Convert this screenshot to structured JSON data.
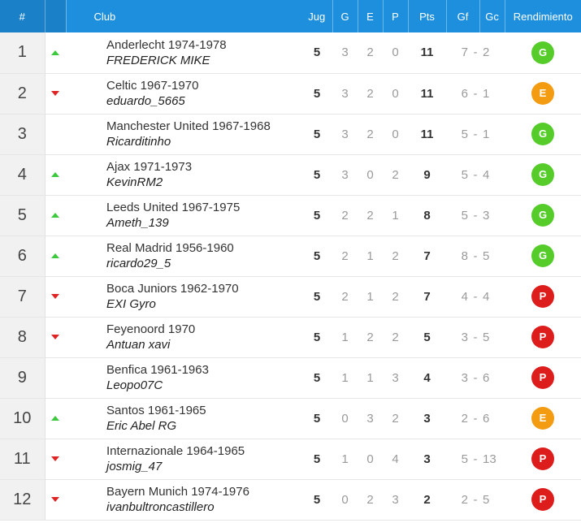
{
  "header": {
    "rank": "#",
    "club": "Club",
    "jug": "Jug",
    "g": "G",
    "e": "E",
    "p": "P",
    "pts": "Pts",
    "gf": "Gf",
    "gc": "Gc",
    "rendimiento": "Rendimiento"
  },
  "colors": {
    "header_bg": "#1e8fdc",
    "trend_up": "#3dc93d",
    "trend_down": "#e02424",
    "badge_G": "#55cc2a",
    "badge_E": "#f39c12",
    "badge_P": "#dd1c1c"
  },
  "rows": [
    {
      "rank": "1",
      "trend": "up",
      "club": "Anderlecht 1974-1978",
      "user": "FREDERICK MIKE",
      "jug": "5",
      "g": "3",
      "e": "2",
      "p": "0",
      "pts": "11",
      "gf": "7",
      "gc": "2",
      "rend": "G"
    },
    {
      "rank": "2",
      "trend": "down",
      "club": "Celtic 1967-1970",
      "user": "eduardo_5665",
      "jug": "5",
      "g": "3",
      "e": "2",
      "p": "0",
      "pts": "11",
      "gf": "6",
      "gc": "1",
      "rend": "E"
    },
    {
      "rank": "3",
      "trend": "none",
      "club": "Manchester United 1967-1968",
      "user": "Ricarditinho",
      "jug": "5",
      "g": "3",
      "e": "2",
      "p": "0",
      "pts": "11",
      "gf": "5",
      "gc": "1",
      "rend": "G"
    },
    {
      "rank": "4",
      "trend": "up",
      "club": "Ajax 1971-1973",
      "user": "KevinRM2",
      "jug": "5",
      "g": "3",
      "e": "0",
      "p": "2",
      "pts": "9",
      "gf": "5",
      "gc": "4",
      "rend": "G"
    },
    {
      "rank": "5",
      "trend": "up",
      "club": "Leeds United 1967-1975",
      "user": "Ameth_139",
      "jug": "5",
      "g": "2",
      "e": "2",
      "p": "1",
      "pts": "8",
      "gf": "5",
      "gc": "3",
      "rend": "G"
    },
    {
      "rank": "6",
      "trend": "up",
      "club": "Real Madrid 1956-1960",
      "user": "ricardo29_5",
      "jug": "5",
      "g": "2",
      "e": "1",
      "p": "2",
      "pts": "7",
      "gf": "8",
      "gc": "5",
      "rend": "G"
    },
    {
      "rank": "7",
      "trend": "down",
      "club": "Boca Juniors 1962-1970",
      "user": "EXI Gyro",
      "jug": "5",
      "g": "2",
      "e": "1",
      "p": "2",
      "pts": "7",
      "gf": "4",
      "gc": "4",
      "rend": "P"
    },
    {
      "rank": "8",
      "trend": "down",
      "club": "Feyenoord 1970",
      "user": "Antuan xavi",
      "jug": "5",
      "g": "1",
      "e": "2",
      "p": "2",
      "pts": "5",
      "gf": "3",
      "gc": "5",
      "rend": "P"
    },
    {
      "rank": "9",
      "trend": "none",
      "club": "Benfica 1961-1963",
      "user": "Leopo07C",
      "jug": "5",
      "g": "1",
      "e": "1",
      "p": "3",
      "pts": "4",
      "gf": "3",
      "gc": "6",
      "rend": "P"
    },
    {
      "rank": "10",
      "trend": "up",
      "club": "Santos 1961-1965",
      "user": "Eric Abel RG",
      "jug": "5",
      "g": "0",
      "e": "3",
      "p": "2",
      "pts": "3",
      "gf": "2",
      "gc": "6",
      "rend": "E"
    },
    {
      "rank": "11",
      "trend": "down",
      "club": "Internazionale 1964-1965",
      "user": "josmig_47",
      "jug": "5",
      "g": "1",
      "e": "0",
      "p": "4",
      "pts": "3",
      "gf": "5",
      "gc": "13",
      "rend": "P"
    },
    {
      "rank": "12",
      "trend": "down",
      "club": "Bayern Munich 1974-1976",
      "user": "ivanbultroncastillero",
      "jug": "5",
      "g": "0",
      "e": "2",
      "p": "3",
      "pts": "2",
      "gf": "2",
      "gc": "5",
      "rend": "P"
    }
  ]
}
